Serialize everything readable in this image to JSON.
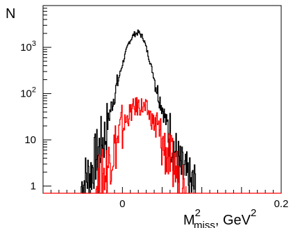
{
  "chart_data": {
    "type": "line",
    "title": "",
    "ylabel": "N",
    "xlabel": {
      "base": "M",
      "superscript": "2",
      "subscript": "miss",
      "suffix": ", GeV",
      "suffix_superscript": "2"
    },
    "xlim": [
      -0.1,
      0.2
    ],
    "ylim": [
      0.7,
      8000
    ],
    "log_y": true,
    "grid": false,
    "x_tick_labels": [
      {
        "value": 0,
        "label": "0"
      },
      {
        "value": 0.2,
        "label": "0.2"
      }
    ],
    "y_tick_labels": [
      {
        "value": 1,
        "mantissa": "1",
        "exponent": ""
      },
      {
        "value": 10,
        "mantissa": "10",
        "exponent": ""
      },
      {
        "value": 100,
        "mantissa": "10",
        "exponent": "2"
      },
      {
        "value": 1000,
        "mantissa": "10",
        "exponent": "3"
      }
    ],
    "series": [
      {
        "color": "#000000",
        "x": [
          -0.052,
          -0.046,
          -0.04,
          -0.034,
          -0.028,
          -0.022,
          -0.016,
          -0.01,
          -0.004,
          0.002,
          0.008,
          0.014,
          0.02,
          0.026,
          0.032,
          0.038,
          0.044,
          0.05,
          0.056,
          0.062,
          0.068,
          0.074,
          0.08,
          0.086,
          0.092
        ],
        "y": [
          1,
          1.5,
          2,
          4,
          8,
          12,
          40,
          100,
          250,
          600,
          1300,
          1900,
          2100,
          1600,
          700,
          280,
          110,
          50,
          20,
          10,
          4,
          2,
          1.5,
          1,
          1
        ]
      },
      {
        "color": "#ff0000",
        "x": [
          -0.034,
          -0.028,
          -0.022,
          -0.016,
          -0.01,
          -0.004,
          0.002,
          0.008,
          0.014,
          0.02,
          0.026,
          0.032,
          0.038,
          0.044,
          0.05,
          0.056,
          0.062,
          0.068,
          0.074,
          0.08
        ],
        "y": [
          1,
          1.5,
          2,
          4,
          7,
          12,
          22,
          35,
          48,
          55,
          50,
          40,
          25,
          15,
          8,
          5,
          3,
          2,
          1.5,
          1
        ]
      }
    ]
  }
}
